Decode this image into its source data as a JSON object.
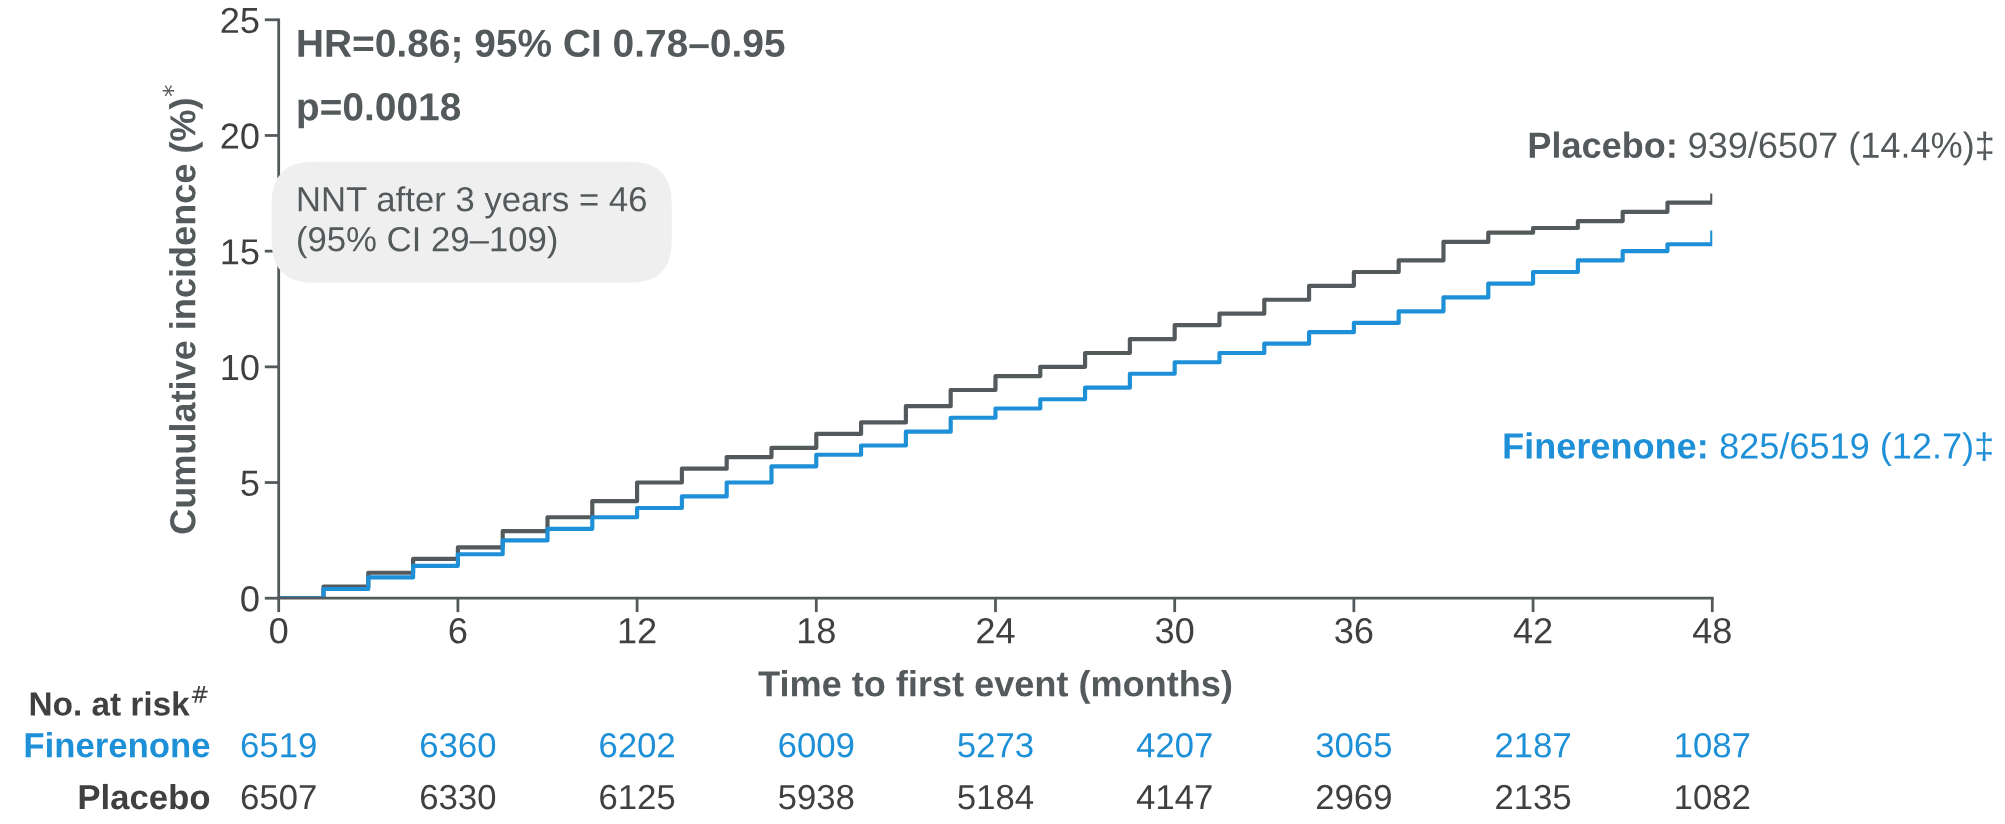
{
  "chart_data": {
    "type": "step",
    "ylabel": "Cumulative incidence (%)$^{*}$",
    "xlabel": "Time to first event (months)",
    "x": [
      0,
      1.5,
      3,
      4.5,
      6,
      7.5,
      9,
      10.5,
      12,
      13.5,
      15,
      16.5,
      18,
      19.5,
      21,
      22.5,
      24,
      25.5,
      27,
      28.5,
      30,
      31.5,
      33,
      34.5,
      36,
      37.5,
      39,
      40.5,
      42,
      43.5,
      45,
      46.5,
      48
    ],
    "series": [
      {
        "name": "Placebo",
        "color": "#54595c",
        "values": [
          0,
          0.5,
          1.1,
          1.7,
          2.2,
          2.9,
          3.5,
          4.2,
          5.0,
          5.6,
          6.1,
          6.5,
          7.1,
          7.6,
          8.3,
          9.0,
          9.6,
          10.0,
          10.6,
          11.2,
          11.8,
          12.3,
          12.9,
          13.5,
          14.1,
          14.6,
          15.4,
          15.8,
          16.0,
          16.3,
          16.7,
          17.1,
          17.4
        ]
      },
      {
        "name": "Finerenone",
        "color": "#1e90d8",
        "values": [
          0,
          0.4,
          0.9,
          1.4,
          1.9,
          2.5,
          3.0,
          3.5,
          3.9,
          4.4,
          5.0,
          5.7,
          6.2,
          6.6,
          7.2,
          7.8,
          8.2,
          8.6,
          9.1,
          9.7,
          10.2,
          10.6,
          11.0,
          11.5,
          11.9,
          12.4,
          13.0,
          13.6,
          14.1,
          14.6,
          15.0,
          15.3,
          15.8
        ]
      }
    ],
    "xlim": [
      0,
      48
    ],
    "xticks": [
      0,
      6,
      12,
      18,
      24,
      30,
      36,
      42,
      48
    ],
    "ylim": [
      0,
      25
    ],
    "yticks": [
      0,
      5,
      10,
      15,
      20,
      25
    ],
    "grid": false,
    "legend": false,
    "line_style": "solid",
    "marker": "none",
    "annotations": [
      "HR=0.86; 95% CI 0.78–0.95",
      "p=0.0018",
      "NNT after 3 years = 46\n(95% CI 29–109)",
      "Placebo:",
      "939/6507 (14.4%)‡",
      "Finerenone:",
      "825/6519 (12.7)‡",
      "No. at risk$^{#}$",
      "6519",
      "6360",
      "6202",
      "6009",
      "5273",
      "4207",
      "3065",
      "2187",
      "1087",
      "6507",
      "6330",
      "6125",
      "5938",
      "5184",
      "4147",
      "2969",
      "2135",
      "1082"
    ]
  }
}
